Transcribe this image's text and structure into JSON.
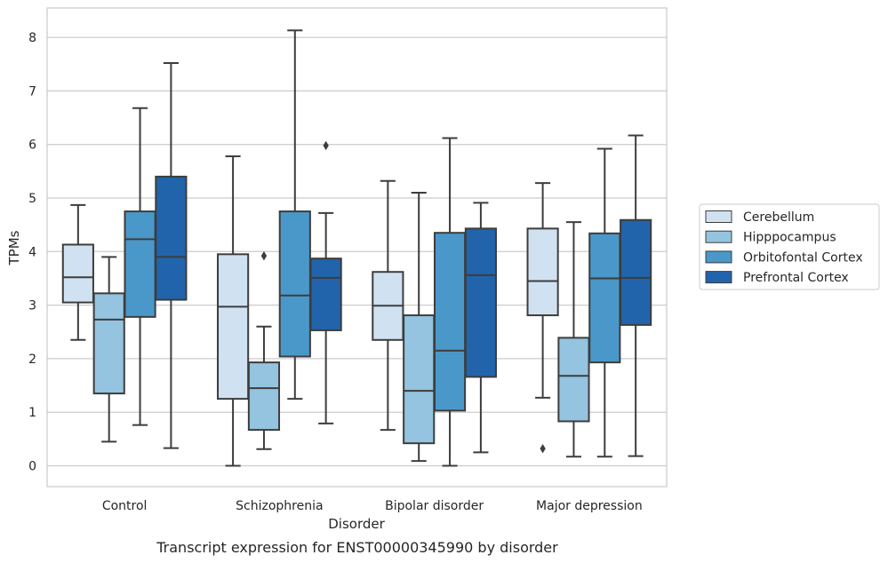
{
  "chart_data": {
    "type": "box",
    "title": "",
    "caption": "Transcript expression for ENST00000345990 by disorder",
    "xlabel": "Disorder",
    "ylabel": "TPMs",
    "ylim": [
      -0.4,
      8.55
    ],
    "yticks": [
      0,
      1,
      2,
      3,
      4,
      5,
      6,
      7,
      8
    ],
    "grid": "horizontal",
    "legend_position": "right",
    "categories": [
      "Control",
      "Schizophrenia",
      "Bipolar disorder",
      "Major depression"
    ],
    "series": [
      {
        "name": "Cerebellum",
        "color": "#d0e1f2",
        "boxes": [
          {
            "min": 2.35,
            "q1": 3.05,
            "median": 3.52,
            "q3": 4.13,
            "max": 4.87,
            "outliers": []
          },
          {
            "min": 0.0,
            "q1": 1.25,
            "median": 2.97,
            "q3": 3.95,
            "max": 5.78,
            "outliers": []
          },
          {
            "min": 0.67,
            "q1": 2.35,
            "median": 2.99,
            "q3": 3.62,
            "max": 5.32,
            "outliers": []
          },
          {
            "min": 1.27,
            "q1": 2.81,
            "median": 3.45,
            "q3": 4.43,
            "max": 5.28,
            "outliers": [
              0.32
            ]
          }
        ]
      },
      {
        "name": "Hipppocampus",
        "color": "#94c4df",
        "boxes": [
          {
            "min": 0.45,
            "q1": 1.35,
            "median": 2.73,
            "q3": 3.22,
            "max": 3.9,
            "outliers": []
          },
          {
            "min": 0.31,
            "q1": 0.67,
            "median": 1.45,
            "q3": 1.93,
            "max": 2.6,
            "outliers": [
              3.92
            ]
          },
          {
            "min": 0.09,
            "q1": 0.42,
            "median": 1.4,
            "q3": 2.81,
            "max": 5.1,
            "outliers": []
          },
          {
            "min": 0.17,
            "q1": 0.83,
            "median": 1.68,
            "q3": 2.39,
            "max": 4.55,
            "outliers": []
          }
        ]
      },
      {
        "name": "Orbitofontal Cortex",
        "color": "#4a98c9",
        "boxes": [
          {
            "min": 0.76,
            "q1": 2.78,
            "median": 4.23,
            "q3": 4.75,
            "max": 6.68,
            "outliers": []
          },
          {
            "min": 1.25,
            "q1": 2.04,
            "median": 3.18,
            "q3": 4.75,
            "max": 8.13,
            "outliers": []
          },
          {
            "min": 0.0,
            "q1": 1.03,
            "median": 2.15,
            "q3": 4.35,
            "max": 6.12,
            "outliers": []
          },
          {
            "min": 0.17,
            "q1": 1.93,
            "median": 3.5,
            "q3": 4.34,
            "max": 5.92,
            "outliers": []
          }
        ]
      },
      {
        "name": "Prefrontal Cortex",
        "color": "#2164ab",
        "boxes": [
          {
            "min": 0.33,
            "q1": 3.1,
            "median": 3.9,
            "q3": 5.4,
            "max": 7.52,
            "outliers": []
          },
          {
            "min": 0.79,
            "q1": 2.53,
            "median": 3.51,
            "q3": 3.87,
            "max": 4.72,
            "outliers": [
              5.98
            ]
          },
          {
            "min": 0.25,
            "q1": 1.66,
            "median": 3.56,
            "q3": 4.43,
            "max": 4.91,
            "outliers": []
          },
          {
            "min": 0.18,
            "q1": 2.63,
            "median": 3.51,
            "q3": 4.59,
            "max": 6.17,
            "outliers": []
          }
        ]
      }
    ]
  }
}
